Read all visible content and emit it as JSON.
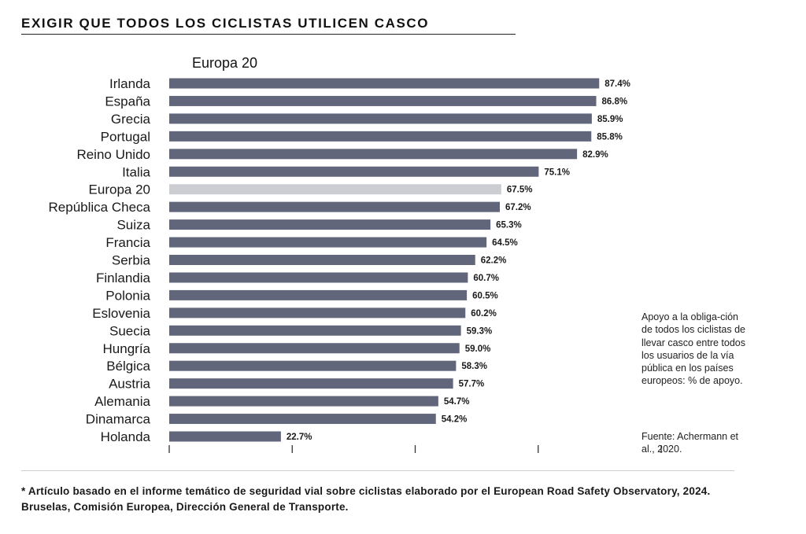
{
  "header": {
    "title": "EXIGIR QUE TODOS LOS CICLISTAS UTILICEN CASCO"
  },
  "chart_data": {
    "type": "bar",
    "orientation": "horizontal",
    "title": "Europa 20",
    "categories": [
      "Irlanda",
      "España",
      "Grecia",
      "Portugal",
      "Reino Unido",
      "Italia",
      "Europa 20",
      "República Checa",
      "Suiza",
      "Francia",
      "Serbia",
      "Finlandia",
      "Polonia",
      "Eslovenia",
      "Suecia",
      "Hungría",
      "Bélgica",
      "Austria",
      "Alemania",
      "Dinamarca",
      "Holanda"
    ],
    "values": [
      87.4,
      86.8,
      85.9,
      85.8,
      82.9,
      75.1,
      67.5,
      67.2,
      65.3,
      64.5,
      62.2,
      60.7,
      60.5,
      60.2,
      59.3,
      59.0,
      58.3,
      57.7,
      54.7,
      54.2,
      22.7
    ],
    "value_labels": [
      "87.4%",
      "86.8%",
      "85.9%",
      "85.8%",
      "82.9%",
      "75.1%",
      "67.5%",
      "67.2%",
      "65.3%",
      "64.5%",
      "62.2%",
      "60.7%",
      "60.5%",
      "60.2%",
      "59.3%",
      "59.0%",
      "58.3%",
      "57.7%",
      "54.7%",
      "54.2%",
      "22.7%"
    ],
    "highlight_category": "Europa 20",
    "bar_color": "#62667a",
    "highlight_color": "#cbcdd3",
    "xlim": [
      0,
      100
    ],
    "xticks": [
      0,
      25,
      50,
      75,
      100
    ],
    "xlabel": "",
    "ylabel": ""
  },
  "notes": {
    "description": "Apoyo a la obliga-ción de todos los ciclistas de llevar casco entre todos los usuarios de la vía pública en los países europeos: % de apoyo.",
    "source": "Fuente: Achermann et al., 2020."
  },
  "footnote": "* Artículo basado en el informe temático de seguridad vial sobre ciclistas elaborado por el European Road Safety Observatory, 2024. Bruselas, Comisión Europea, Dirección General de Transporte."
}
